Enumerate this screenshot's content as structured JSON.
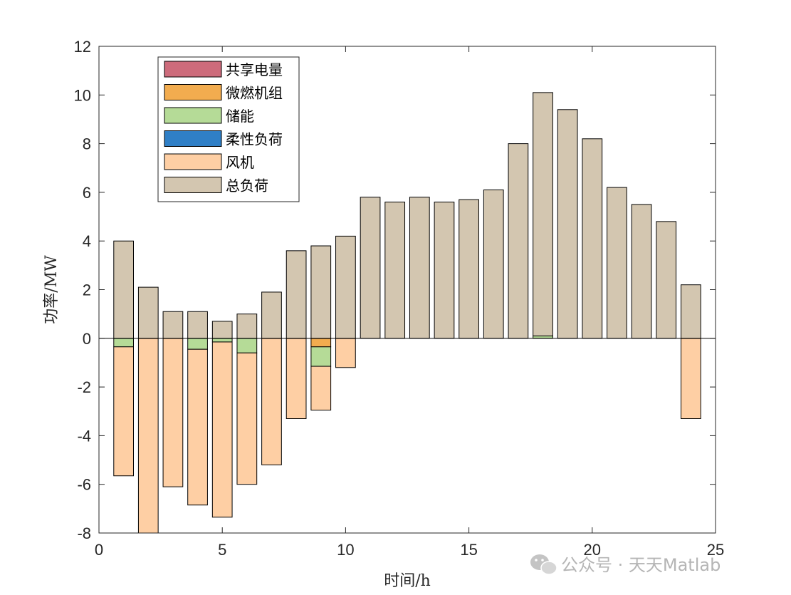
{
  "chart_data": {
    "type": "bar",
    "stacked": true,
    "xlabel": "时间/h",
    "ylabel": "功率/MW",
    "xlim": [
      0,
      25
    ],
    "ylim": [
      -8,
      12
    ],
    "xticks": [
      0,
      5,
      10,
      15,
      20,
      25
    ],
    "yticks": [
      -8,
      -6,
      -4,
      -2,
      0,
      2,
      4,
      6,
      8,
      10,
      12
    ],
    "grid": false,
    "legend_position": "top-left",
    "x": [
      1,
      2,
      3,
      4,
      5,
      6,
      7,
      8,
      9,
      10,
      11,
      12,
      13,
      14,
      15,
      16,
      17,
      18,
      19,
      20,
      21,
      22,
      23,
      24
    ],
    "series": [
      {
        "name": "共享电量",
        "color": "#CD6B7B",
        "values": [
          0,
          0,
          0,
          0,
          0,
          0,
          0,
          0,
          0,
          0,
          0,
          0,
          0,
          0,
          0,
          0,
          0,
          0,
          0,
          0,
          0,
          0,
          0,
          0
        ]
      },
      {
        "name": "微燃机组",
        "color": "#F2AC4F",
        "values": [
          0,
          0,
          0,
          0,
          0,
          0,
          0,
          0,
          -0.35,
          0,
          0,
          0,
          0,
          0,
          0,
          0,
          0,
          0,
          0,
          0,
          0,
          0,
          0,
          0
        ]
      },
      {
        "name": "储能",
        "color": "#B5DB97",
        "values": [
          -0.35,
          0,
          0,
          -0.45,
          -0.15,
          -0.6,
          0,
          0,
          -0.8,
          0,
          0,
          0,
          0,
          0,
          0,
          0,
          0,
          0.1,
          0,
          0,
          0,
          0,
          0,
          0
        ]
      },
      {
        "name": "柔性负荷",
        "color": "#2F7FC6",
        "values": [
          0,
          0,
          0,
          0,
          0,
          0,
          0,
          0,
          0,
          0,
          0,
          0,
          0,
          0,
          0,
          0,
          0,
          0,
          0,
          0,
          0,
          0,
          0,
          0
        ]
      },
      {
        "name": "风机",
        "color": "#FECFA4",
        "values": [
          -5.3,
          -8,
          -6.1,
          -6.4,
          -7.2,
          -5.4,
          -5.2,
          -3.3,
          -1.8,
          -1.2,
          0,
          0,
          0,
          0,
          0,
          0,
          0,
          0,
          0,
          0,
          0,
          0,
          0,
          -3.3
        ]
      },
      {
        "name": "总负荷",
        "color": "#D3C6B0",
        "values": [
          4,
          2.1,
          1.1,
          1.1,
          0.7,
          1,
          1.9,
          3.6,
          3.8,
          4.2,
          5.8,
          5.6,
          5.8,
          5.6,
          5.7,
          6.1,
          8,
          10,
          9.4,
          8.2,
          6.2,
          5.5,
          4.8,
          2.2
        ]
      }
    ]
  },
  "watermark": {
    "text": "公众号 · 天天Matlab",
    "icon": "wechat-icon"
  }
}
